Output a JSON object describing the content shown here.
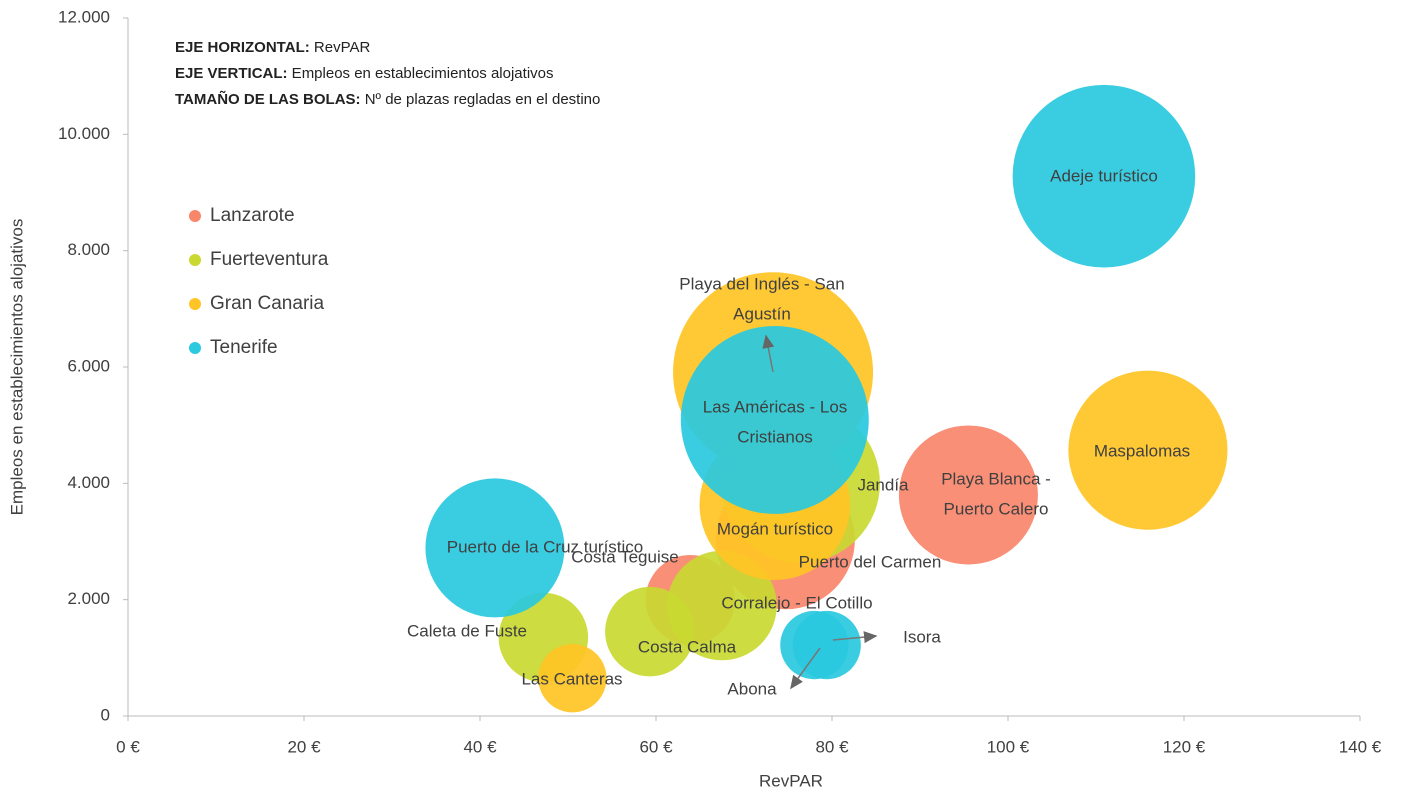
{
  "chart_data": {
    "type": "bubble",
    "xlabel": "RevPAR",
    "ylabel": "Empleos en establecimientos alojativos",
    "annotations": [
      {
        "bold": "EJE HORIZONTAL:",
        "text": " RevPAR"
      },
      {
        "bold": "EJE VERTICAL:",
        "text": " Empleos en establecimientos alojativos"
      },
      {
        "bold": "TAMAÑO DE LAS BOLAS:",
        "text": " Nº de plazas regladas en el destino"
      }
    ],
    "xlim": [
      0,
      140
    ],
    "xticks": [
      {
        "value": 0,
        "label": "0 €"
      },
      {
        "value": 20,
        "label": "20 €"
      },
      {
        "value": 40,
        "label": "40 €"
      },
      {
        "value": 60,
        "label": "60 €"
      },
      {
        "value": 80,
        "label": "80 €"
      },
      {
        "value": 100,
        "label": "100 €"
      },
      {
        "value": 120,
        "label": "120 €"
      },
      {
        "value": 140,
        "label": "140 €"
      }
    ],
    "ylim": [
      0,
      12000
    ],
    "yticks": [
      0,
      {
        "value": 2000,
        "label": "2.000"
      },
      {
        "value": 4000,
        "label": "4.000"
      },
      {
        "value": 6000,
        "label": "6.000"
      },
      {
        "value": 8000,
        "label": "8.000"
      },
      {
        "value": 10000,
        "label": "10.000"
      },
      {
        "value": 12000,
        "label": "12.000"
      }
    ],
    "legend": "left",
    "series": [
      {
        "name": "Lanzarote",
        "color": "#f8866b",
        "labels": [
          [
            "Playa Blanca -",
            "Puerto Calero"
          ],
          [
            "Puerto del Carmen"
          ],
          [
            "Costa Teguise"
          ]
        ],
        "x": [
          95.5,
          74.7,
          63.9
        ],
        "values": [
          3800,
          3030,
          2000
        ],
        "sizes": [
          29000,
          29000,
          12000
        ]
      },
      {
        "name": "Fuerteventura",
        "color": "#c9d931",
        "labels": [
          [
            "Jandía"
          ],
          [
            "Corralejo - El Cotillo"
          ],
          [
            "Costa Calma"
          ],
          [
            "Caleta de Fuste"
          ]
        ],
        "x": [
          76.4,
          67.5,
          59.3,
          47.2
        ],
        "values": [
          4000,
          1900,
          1450,
          1350
        ],
        "sizes": [
          38000,
          18000,
          12000,
          12000
        ]
      },
      {
        "name": "Gran Canaria",
        "color": "#ffc425",
        "labels": [
          [
            "Playa del Inglés - San",
            "Agustín"
          ],
          [
            "Maspalomas"
          ],
          [
            "Mogán turístico"
          ],
          [
            "Las Canteras"
          ]
        ],
        "x": [
          73.3,
          115.9,
          73.5,
          50.5
        ],
        "values": [
          5910,
          4570,
          3630,
          650
        ],
        "sizes": [
          60000,
          38000,
          34000,
          7000
        ]
      },
      {
        "name": "Tenerife",
        "color": "#29c9e0",
        "labels": [
          [
            "Adeje turístico"
          ],
          [
            "Las Américas - Los",
            "Cristianos"
          ],
          [
            "Puerto de la Cruz turístico"
          ],
          [
            "Isora"
          ],
          [
            "Abona"
          ]
        ],
        "x": [
          110.9,
          73.5,
          41.7,
          79.4,
          78.0
        ],
        "values": [
          9280,
          5090,
          2890,
          1220,
          1220
        ],
        "sizes": [
          50000,
          53000,
          29000,
          7000,
          7000
        ]
      }
    ]
  }
}
